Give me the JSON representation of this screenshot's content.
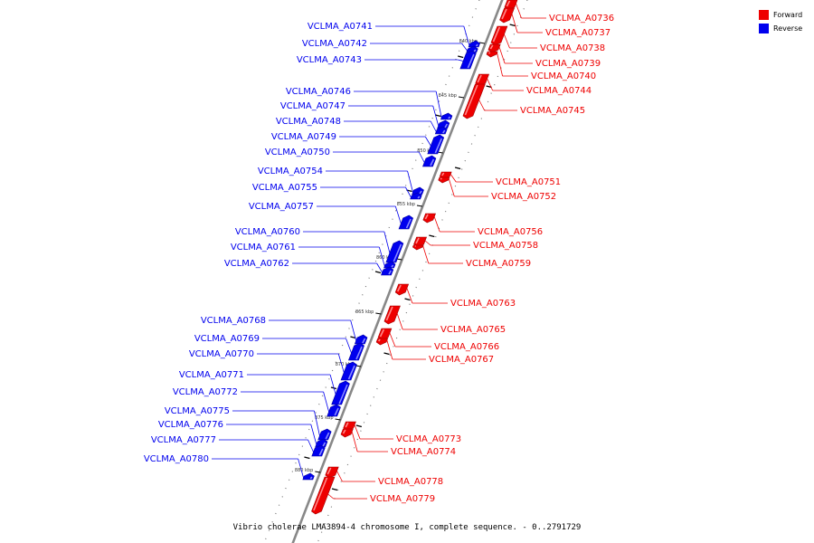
{
  "caption": "Vibrio cholerae LMA3894-4 chromosome I, complete sequence. - 0..2791729",
  "legend": [
    {
      "label": "Forward",
      "color": "#ee0000"
    },
    {
      "label": "Reverse",
      "color": "#0000ee"
    }
  ],
  "colors": {
    "forward": "#ee0000",
    "reverse": "#0000ee",
    "backbone": "#888888"
  },
  "scale_ticks": [
    "840 kbp",
    "845 kbp",
    "850 kbp",
    "855 kbp",
    "860 kbp",
    "865 kbp",
    "870 kbp",
    "875 kbp",
    "880 kbp"
  ],
  "genes": [
    {
      "name": "VCLMA_A0736",
      "strand": "forward"
    },
    {
      "name": "VCLMA_A0737",
      "strand": "forward"
    },
    {
      "name": "VCLMA_A0738",
      "strand": "forward"
    },
    {
      "name": "VCLMA_A0739",
      "strand": "forward"
    },
    {
      "name": "VCLMA_A0740",
      "strand": "forward"
    },
    {
      "name": "VCLMA_A0744",
      "strand": "forward"
    },
    {
      "name": "VCLMA_A0745",
      "strand": "forward"
    },
    {
      "name": "VCLMA_A0751",
      "strand": "forward"
    },
    {
      "name": "VCLMA_A0752",
      "strand": "forward"
    },
    {
      "name": "VCLMA_A0756",
      "strand": "forward"
    },
    {
      "name": "VCLMA_A0758",
      "strand": "forward"
    },
    {
      "name": "VCLMA_A0759",
      "strand": "forward"
    },
    {
      "name": "VCLMA_A0763",
      "strand": "forward"
    },
    {
      "name": "VCLMA_A0765",
      "strand": "forward"
    },
    {
      "name": "VCLMA_A0766",
      "strand": "forward"
    },
    {
      "name": "VCLMA_A0767",
      "strand": "forward"
    },
    {
      "name": "VCLMA_A0773",
      "strand": "forward"
    },
    {
      "name": "VCLMA_A0774",
      "strand": "forward"
    },
    {
      "name": "VCLMA_A0778",
      "strand": "forward"
    },
    {
      "name": "VCLMA_A0779",
      "strand": "forward"
    },
    {
      "name": "VCLMA_A0741",
      "strand": "reverse"
    },
    {
      "name": "VCLMA_A0742",
      "strand": "reverse"
    },
    {
      "name": "VCLMA_A0743",
      "strand": "reverse"
    },
    {
      "name": "VCLMA_A0746",
      "strand": "reverse"
    },
    {
      "name": "VCLMA_A0747",
      "strand": "reverse"
    },
    {
      "name": "VCLMA_A0748",
      "strand": "reverse"
    },
    {
      "name": "VCLMA_A0749",
      "strand": "reverse"
    },
    {
      "name": "VCLMA_A0750",
      "strand": "reverse"
    },
    {
      "name": "VCLMA_A0754",
      "strand": "reverse"
    },
    {
      "name": "VCLMA_A0755",
      "strand": "reverse"
    },
    {
      "name": "VCLMA_A0757",
      "strand": "reverse"
    },
    {
      "name": "VCLMA_A0760",
      "strand": "reverse"
    },
    {
      "name": "VCLMA_A0761",
      "strand": "reverse"
    },
    {
      "name": "VCLMA_A0762",
      "strand": "reverse"
    },
    {
      "name": "VCLMA_A0768",
      "strand": "reverse"
    },
    {
      "name": "VCLMA_A0769",
      "strand": "reverse"
    },
    {
      "name": "VCLMA_A0770",
      "strand": "reverse"
    },
    {
      "name": "VCLMA_A0771",
      "strand": "reverse"
    },
    {
      "name": "VCLMA_A0772",
      "strand": "reverse"
    },
    {
      "name": "VCLMA_A0775",
      "strand": "reverse"
    },
    {
      "name": "VCLMA_A0776",
      "strand": "reverse"
    },
    {
      "name": "VCLMA_A0777",
      "strand": "reverse"
    },
    {
      "name": "VCLMA_A0780",
      "strand": "reverse"
    }
  ]
}
